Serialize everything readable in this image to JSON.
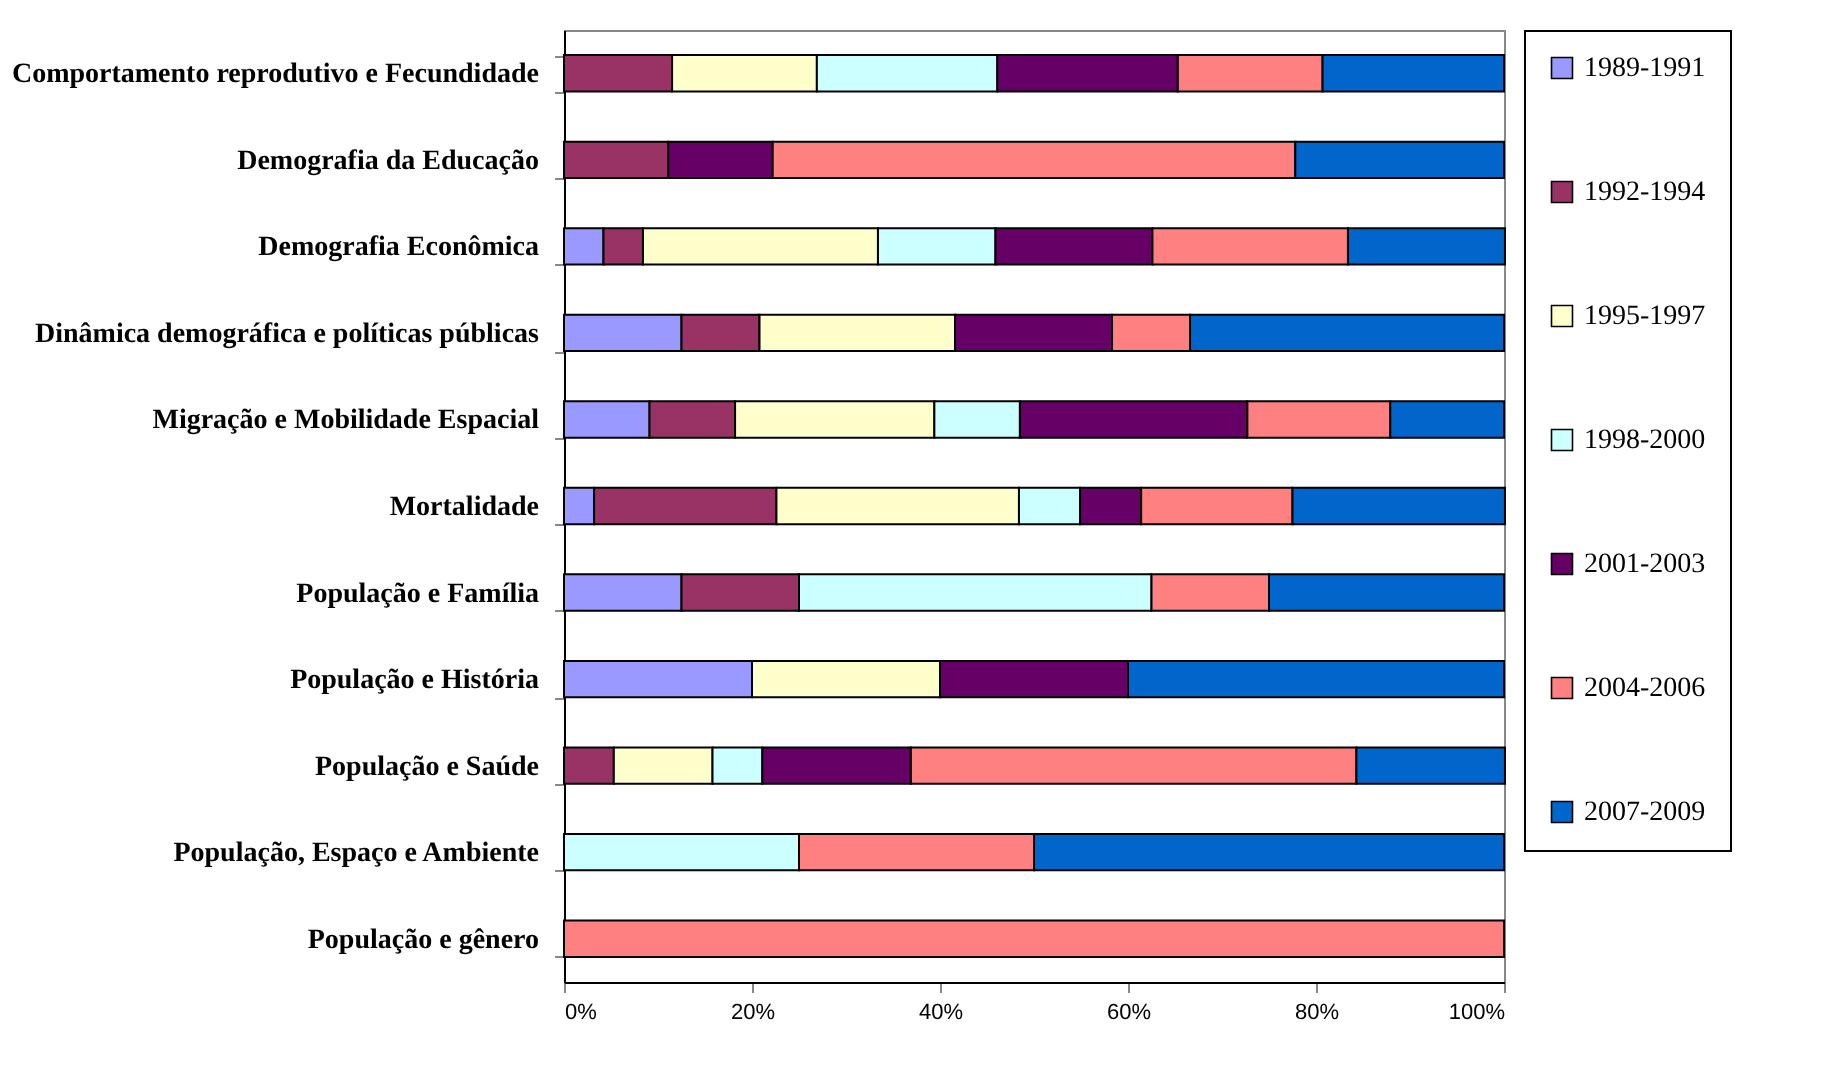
{
  "chart_data": {
    "type": "bar",
    "orientation": "horizontal",
    "stacked": true,
    "legend": "right",
    "grid": false,
    "categories": [
      "Comportamento reprodutivo e Fecundidade",
      "Demografia da Educação",
      "Demografia Econômica",
      "Dinâmica demográfica e políticas públicas",
      "Migração e Mobilidade Espacial",
      "Mortalidade",
      "População e Família",
      "População e História",
      "População e Saúde",
      "População, Espaço e Ambiente",
      "População e gênero"
    ],
    "xlim": [
      0,
      100
    ],
    "xticks": [
      {
        "value": 0,
        "label": "0%"
      },
      {
        "value": 20,
        "label": "20%"
      },
      {
        "value": 40,
        "label": "40%"
      },
      {
        "value": 60,
        "label": "60%"
      },
      {
        "value": 80,
        "label": "80%"
      },
      {
        "value": 100,
        "label": "100%"
      }
    ],
    "series": [
      {
        "name": "1989-1991",
        "color": "#9999ff",
        "values": [
          null,
          null,
          4.2,
          12.5,
          9.1,
          3.2,
          12.5,
          20,
          null,
          null,
          null
        ]
      },
      {
        "name": "1992-1994",
        "color": "#993366",
        "values": [
          11.5,
          11.1,
          4.2,
          8.3,
          9.1,
          19.4,
          12.5,
          null,
          5.3,
          null,
          null
        ]
      },
      {
        "name": "1995-1997",
        "color": "#ffffcc",
        "values": [
          15.4,
          null,
          25,
          20.8,
          21.2,
          25.8,
          null,
          20,
          10.5,
          null,
          null
        ]
      },
      {
        "name": "1998-2000",
        "color": "#ccffff",
        "values": [
          19.2,
          null,
          12.5,
          null,
          9.1,
          6.5,
          37.5,
          null,
          5.3,
          25,
          null
        ]
      },
      {
        "name": "2001-2003",
        "color": "#660066",
        "values": [
          19.2,
          11.1,
          16.7,
          16.7,
          24.2,
          6.5,
          null,
          20,
          15.8,
          null,
          null
        ]
      },
      {
        "name": "2004-2006",
        "color": "#ff8080",
        "values": [
          15.4,
          55.6,
          20.8,
          8.3,
          15.2,
          16.1,
          12.5,
          null,
          47.4,
          25,
          100
        ]
      },
      {
        "name": "2007-2009",
        "color": "#0066cc",
        "values": [
          19.3,
          22.2,
          16.7,
          33.4,
          12.1,
          22.6,
          25,
          40,
          15.8,
          50,
          null
        ]
      }
    ]
  }
}
